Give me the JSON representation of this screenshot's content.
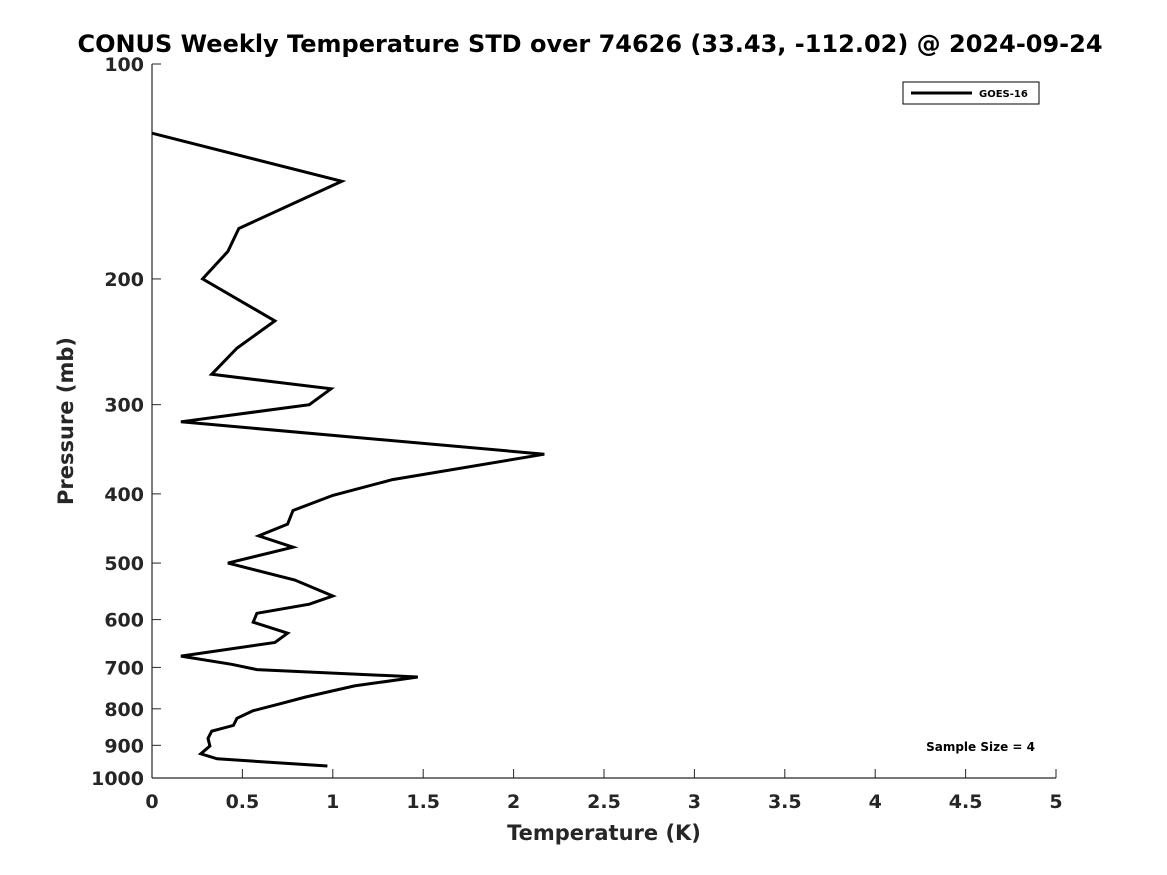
{
  "chart_data": {
    "type": "line",
    "title": "CONUS Weekly Temperature STD over 74626 (33.43, -112.02) @ 2024-09-24",
    "xlabel": "Temperature (K)",
    "ylabel": "Pressure (mb)",
    "xlim": [
      0,
      5
    ],
    "ylim": [
      100,
      1000
    ],
    "y_scale": "log",
    "y_reversed": true,
    "grid": false,
    "legend_position": "top-right",
    "x_ticks": [
      "0",
      "0.5",
      "1",
      "1.5",
      "2",
      "2.5",
      "3",
      "3.5",
      "4",
      "4.5",
      "5"
    ],
    "y_ticks": [
      "100",
      "200",
      "300",
      "400",
      "500",
      "600",
      "700",
      "800",
      "900",
      "1000"
    ],
    "series": [
      {
        "name": "GOES-16",
        "color": "#000000",
        "points": [
          [
            0.0,
            125
          ],
          [
            1.05,
            146
          ],
          [
            0.48,
            170
          ],
          [
            0.42,
            183
          ],
          [
            0.28,
            200
          ],
          [
            0.68,
            229
          ],
          [
            0.47,
            250
          ],
          [
            0.33,
            272
          ],
          [
            0.99,
            285
          ],
          [
            0.87,
            300
          ],
          [
            0.16,
            317
          ],
          [
            2.17,
            352
          ],
          [
            1.33,
            382
          ],
          [
            1.0,
            402
          ],
          [
            0.78,
            422
          ],
          [
            0.75,
            441
          ],
          [
            0.59,
            458
          ],
          [
            0.78,
            475
          ],
          [
            0.42,
            500
          ],
          [
            0.79,
            528
          ],
          [
            1.0,
            556
          ],
          [
            0.87,
            571
          ],
          [
            0.58,
            588
          ],
          [
            0.56,
            605
          ],
          [
            0.75,
            627
          ],
          [
            0.68,
            646
          ],
          [
            0.16,
            675
          ],
          [
            0.44,
            693
          ],
          [
            0.58,
            705
          ],
          [
            1.47,
            722
          ],
          [
            1.12,
            743
          ],
          [
            0.85,
            770
          ],
          [
            0.71,
            787
          ],
          [
            0.56,
            805
          ],
          [
            0.47,
            825
          ],
          [
            0.45,
            844
          ],
          [
            0.33,
            860
          ],
          [
            0.31,
            880
          ],
          [
            0.32,
            902
          ],
          [
            0.27,
            925
          ],
          [
            0.36,
            940
          ],
          [
            0.97,
            962
          ]
        ]
      }
    ],
    "annotation": "Sample Size = 4"
  }
}
